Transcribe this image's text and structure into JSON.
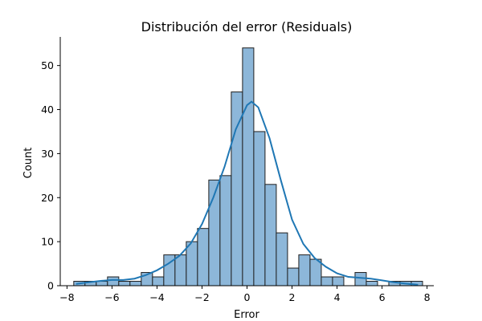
{
  "chart_data": {
    "type": "bar",
    "title": "Distribución del error (Residuals)",
    "xlabel": "Error",
    "ylabel": "Count",
    "xlim": [
      -8.3,
      8.3
    ],
    "ylim": [
      0,
      56.5
    ],
    "x_ticks": [
      -8,
      -6,
      -4,
      -2,
      0,
      2,
      4,
      6,
      8
    ],
    "y_ticks": [
      0,
      10,
      20,
      30,
      40,
      50
    ],
    "bin_edges": [
      -7.7,
      -7.2,
      -6.7,
      -6.2,
      -5.7,
      -5.2,
      -4.7,
      -4.2,
      -3.7,
      -3.2,
      -2.7,
      -2.2,
      -1.7,
      -1.2,
      -0.7,
      -0.2,
      0.3,
      0.8,
      1.3,
      1.8,
      2.3,
      2.8,
      3.3,
      3.8,
      4.3,
      4.8,
      5.3,
      5.8,
      6.3,
      6.8,
      7.3,
      7.8
    ],
    "counts": [
      1,
      1,
      1,
      2,
      1,
      1,
      3,
      2,
      7,
      7,
      10,
      13,
      24,
      25,
      44,
      54,
      35,
      23,
      12,
      4,
      7,
      6,
      2,
      2,
      0,
      3,
      1,
      0,
      1,
      1,
      1
    ],
    "kde": {
      "x": [
        -7.6,
        -7.0,
        -6.5,
        -6.0,
        -5.5,
        -5.0,
        -4.5,
        -4.0,
        -3.5,
        -3.0,
        -2.5,
        -2.0,
        -1.5,
        -1.0,
        -0.5,
        0.0,
        0.2,
        0.5,
        1.0,
        1.5,
        2.0,
        2.5,
        3.0,
        3.5,
        4.0,
        4.5,
        5.0,
        5.5,
        6.0,
        6.5,
        7.0,
        7.6
      ],
      "y": [
        0.4,
        0.8,
        1.1,
        1.3,
        1.3,
        1.6,
        2.4,
        3.5,
        5.0,
        6.8,
        9.6,
        14.0,
        20.0,
        27.0,
        35.5,
        41.0,
        41.8,
        40.5,
        33.5,
        24.0,
        15.0,
        9.5,
        6.3,
        4.3,
        2.8,
        2.0,
        1.8,
        1.6,
        1.2,
        0.8,
        0.5,
        0.2
      ]
    },
    "grid": false,
    "legend": "none",
    "colors": {
      "bar_fill": "#8db7d9",
      "bar_edge": "#1f1f1f",
      "kde_line": "#1f77b4"
    }
  }
}
